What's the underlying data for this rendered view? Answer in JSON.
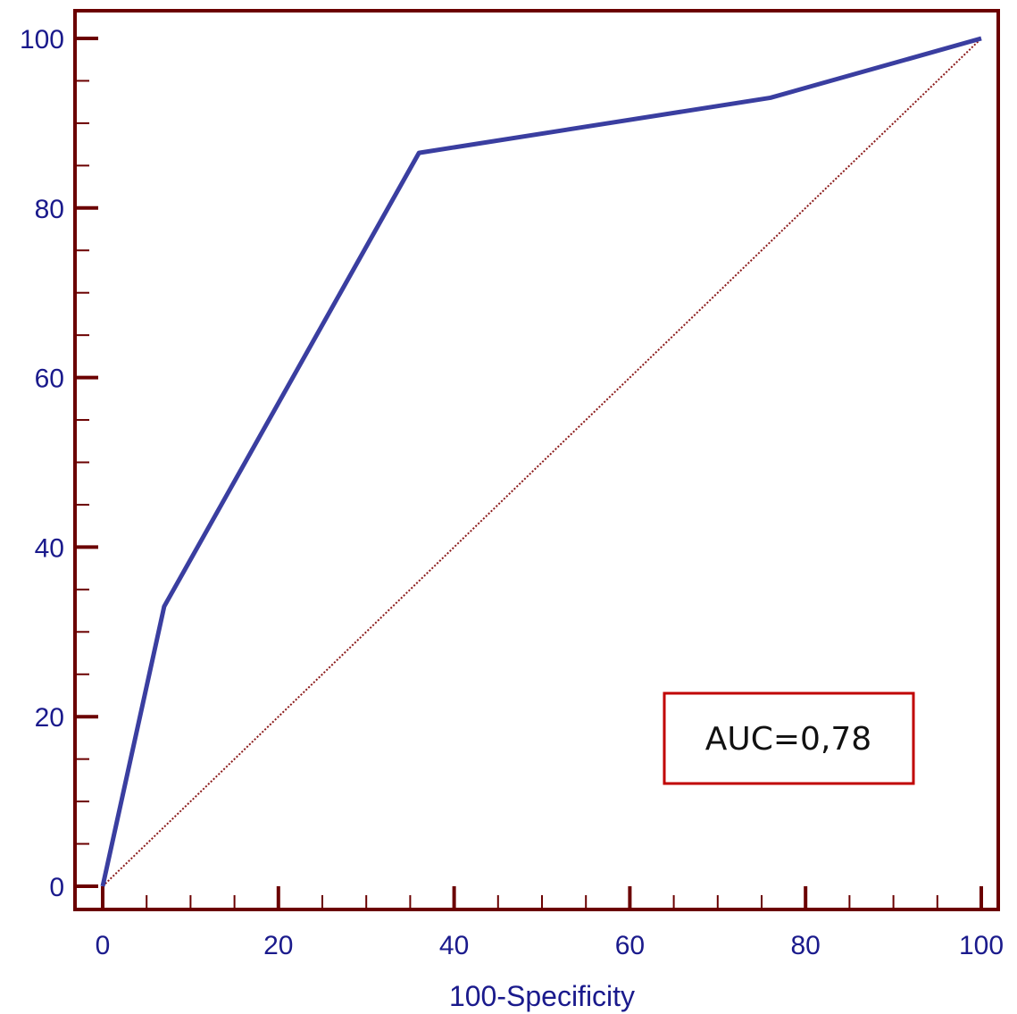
{
  "chart_data": {
    "type": "line",
    "title": "",
    "xlabel": "100-Specificity",
    "ylabel": "",
    "xlim": [
      0,
      100
    ],
    "ylim": [
      0,
      100
    ],
    "x_ticks": [
      "0",
      "20",
      "40",
      "60",
      "80",
      "100"
    ],
    "y_ticks": [
      "0",
      "20",
      "40",
      "60",
      "80",
      "100"
    ],
    "series": [
      {
        "x": [
          0,
          7,
          36,
          76,
          100
        ],
        "y": [
          0,
          33,
          86.5,
          93,
          100
        ],
        "color": "#3a3ea0"
      }
    ],
    "reference_line": {
      "x": [
        0,
        100
      ],
      "y": [
        0,
        100
      ],
      "style": "dotted",
      "color": "#8b1a1a"
    },
    "annotation": {
      "text": "AUC=0,78",
      "placement": "lower-right",
      "border_color": "#c00000"
    },
    "grid": false,
    "frame_color": "#6b0000"
  }
}
